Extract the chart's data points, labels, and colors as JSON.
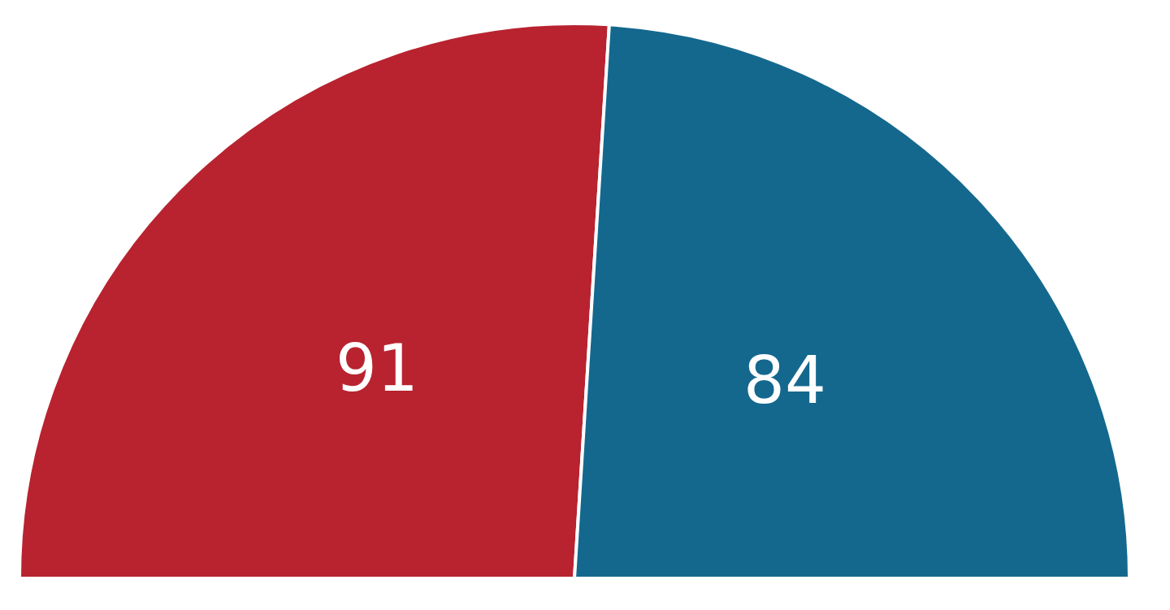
{
  "chart_data": {
    "type": "pie",
    "categories": [
      null,
      null
    ],
    "values": [
      91,
      84
    ],
    "colors": [
      "#b8232f",
      "#14688e"
    ],
    "data_labels": true
  }
}
